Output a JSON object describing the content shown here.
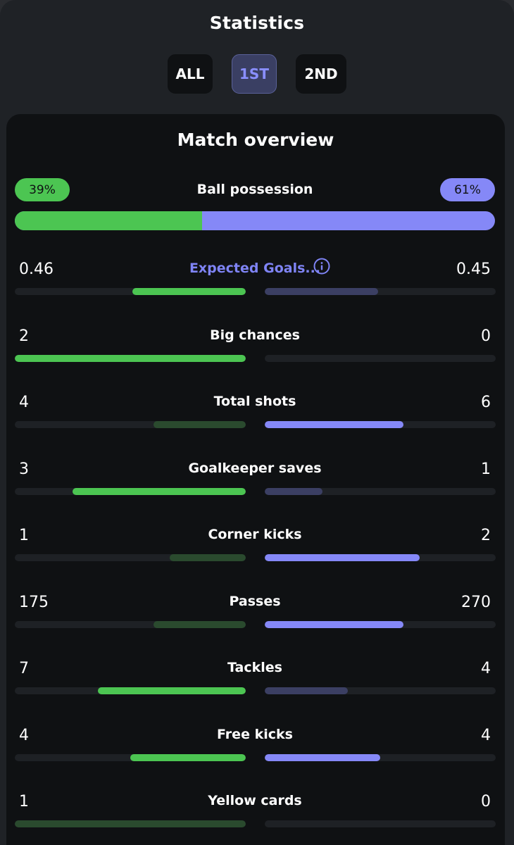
{
  "header": {
    "title": "Statistics",
    "tabs": [
      {
        "label": "ALL",
        "active": false
      },
      {
        "label": "1ST",
        "active": true
      },
      {
        "label": "2ND",
        "active": false
      }
    ]
  },
  "overview": {
    "title": "Match overview",
    "possession": {
      "label": "Ball possession",
      "home_text": "39%",
      "away_text": "61%",
      "home_fraction": 0.39
    },
    "stats": [
      {
        "label": "Expected Goals...",
        "home": "0.46",
        "away": "0.45",
        "home_fraction": 0.49,
        "away_fraction": 0.49,
        "home_strong": true,
        "away_strong": false,
        "link": true,
        "info_icon": "info-icon"
      },
      {
        "label": "Big chances",
        "home": "2",
        "away": "0",
        "home_fraction": 1.0,
        "away_fraction": 0.0,
        "home_strong": true,
        "away_strong": false
      },
      {
        "label": "Total shots",
        "home": "4",
        "away": "6",
        "home_fraction": 0.4,
        "away_fraction": 0.6,
        "home_strong": false,
        "away_strong": true
      },
      {
        "label": "Goalkeeper saves",
        "home": "3",
        "away": "1",
        "home_fraction": 0.75,
        "away_fraction": 0.25,
        "home_strong": true,
        "away_strong": false
      },
      {
        "label": "Corner kicks",
        "home": "1",
        "away": "2",
        "home_fraction": 0.33,
        "away_fraction": 0.67,
        "home_strong": false,
        "away_strong": true
      },
      {
        "label": "Passes",
        "home": "175",
        "away": "270",
        "home_fraction": 0.4,
        "away_fraction": 0.6,
        "home_strong": false,
        "away_strong": true
      },
      {
        "label": "Tackles",
        "home": "7",
        "away": "4",
        "home_fraction": 0.64,
        "away_fraction": 0.36,
        "home_strong": true,
        "away_strong": false
      },
      {
        "label": "Free kicks",
        "home": "4",
        "away": "4",
        "home_fraction": 0.5,
        "away_fraction": 0.5,
        "home_strong": true,
        "away_strong": true
      },
      {
        "label": "Yellow cards",
        "home": "1",
        "away": "0",
        "home_fraction": 1.0,
        "away_fraction": 0.0,
        "home_strong": false,
        "away_strong": false
      }
    ]
  },
  "colors": {
    "home": "#4cc552",
    "home_dim": "#2a4a2e",
    "away": "#8588f7",
    "away_dim": "#3b3f63",
    "track": "#1e2125",
    "active_tab_text": "#8a8fff"
  }
}
